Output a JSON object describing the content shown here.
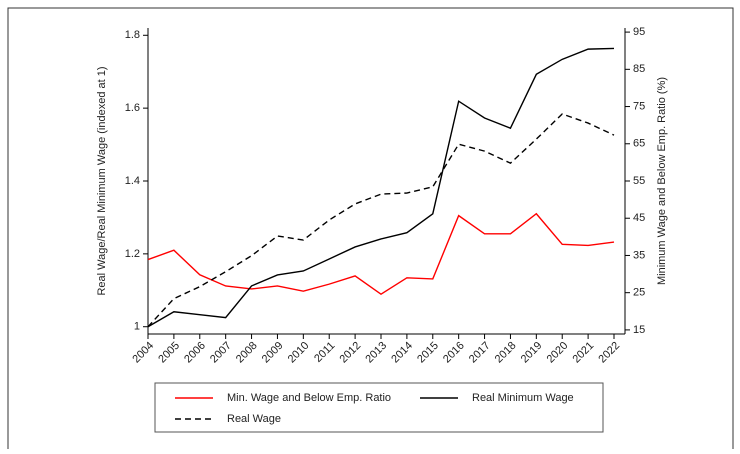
{
  "chart_data": {
    "type": "line",
    "y_label": "Real Wage/Real Minimum Wage (indexed at 1)",
    "y2_label": "Minimum Wage and Below Emp. Ratio (%)",
    "x": [
      2004,
      2005,
      2006,
      2007,
      2008,
      2009,
      2010,
      2011,
      2012,
      2013,
      2014,
      2015,
      2016,
      2017,
      2018,
      2019,
      2020,
      2021,
      2022
    ],
    "xlim": [
      2004,
      2022
    ],
    "xticks": [
      2004,
      2005,
      2006,
      2007,
      2008,
      2009,
      2010,
      2011,
      2012,
      2013,
      2014,
      2015,
      2016,
      2017,
      2018,
      2019,
      2020,
      2021,
      2022
    ],
    "ylim": [
      0.98,
      1.82
    ],
    "yticks": [
      1,
      1.2,
      1.4,
      1.6,
      1.8
    ],
    "y2lim": [
      13.9,
      96.1
    ],
    "y2ticks": [
      15,
      25,
      35,
      45,
      55,
      65,
      75,
      85,
      95
    ],
    "series": [
      {
        "name": "Min. Wage and Below Emp. Ratio",
        "color": "#ff0000",
        "dash": false,
        "axis": "y2",
        "values": [
          33.9,
          36.4,
          29.8,
          26.8,
          26,
          26.8,
          25.4,
          27.3,
          29.5,
          24.6,
          29,
          28.7,
          45.7,
          40.8,
          40.8,
          46.2,
          38,
          37.7,
          38.6
        ]
      },
      {
        "name": "Real Minimum Wage",
        "color": "#000000",
        "dash": false,
        "values": [
          1.0,
          1.041,
          1.033,
          1.025,
          1.112,
          1.142,
          1.153,
          1.186,
          1.219,
          1.241,
          1.258,
          1.31,
          1.619,
          1.573,
          1.545,
          1.693,
          1.734,
          1.762,
          1.764
        ]
      },
      {
        "name": "Real Wage",
        "color": "#000000",
        "dash": true,
        "values": [
          1.0,
          1.077,
          1.11,
          1.151,
          1.195,
          1.249,
          1.238,
          1.293,
          1.337,
          1.364,
          1.367,
          1.384,
          1.501,
          1.482,
          1.449,
          1.515,
          1.584,
          1.559,
          1.526
        ]
      }
    ]
  }
}
